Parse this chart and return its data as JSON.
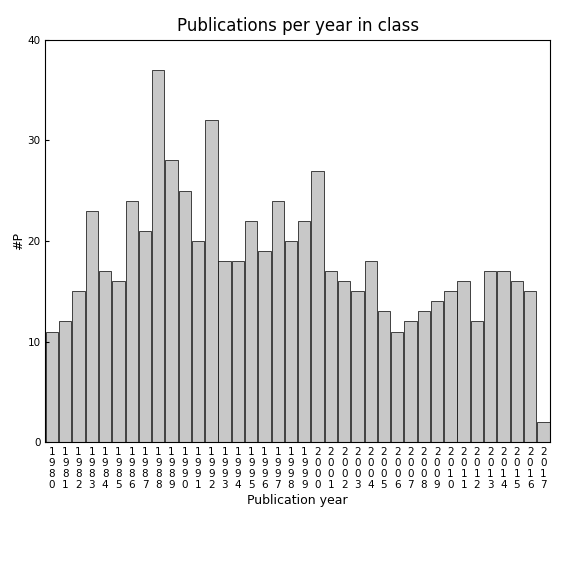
{
  "title": "Publications per year in class",
  "xlabel": "Publication year",
  "ylabel": "#P",
  "years": [
    "1980",
    "1981",
    "1982",
    "1983",
    "1984",
    "1985",
    "1986",
    "1987",
    "1988",
    "1989",
    "1990",
    "1991",
    "1992",
    "1993",
    "1994",
    "1995",
    "1996",
    "1997",
    "1998",
    "1999",
    "2000",
    "2001",
    "2002",
    "2003",
    "2004",
    "2005",
    "2006",
    "2007",
    "2008",
    "2009",
    "2010",
    "2011",
    "2012",
    "2013",
    "2014",
    "2015",
    "2016",
    "2017"
  ],
  "values": [
    11,
    12,
    15,
    23,
    17,
    16,
    24,
    21,
    37,
    28,
    25,
    20,
    32,
    18,
    18,
    22,
    19,
    24,
    20,
    22,
    27,
    17,
    16,
    15,
    18,
    13,
    11,
    12,
    13,
    14,
    15,
    16,
    12,
    17,
    17,
    16,
    15,
    2
  ],
  "bar_color": "#c8c8c8",
  "bar_edgecolor": "#000000",
  "bar_linewidth": 0.5,
  "ylim": [
    0,
    40
  ],
  "yticks": [
    0,
    10,
    20,
    30,
    40
  ],
  "background_color": "#ffffff",
  "title_fontsize": 12,
  "axis_label_fontsize": 9,
  "tick_fontsize": 7.5
}
